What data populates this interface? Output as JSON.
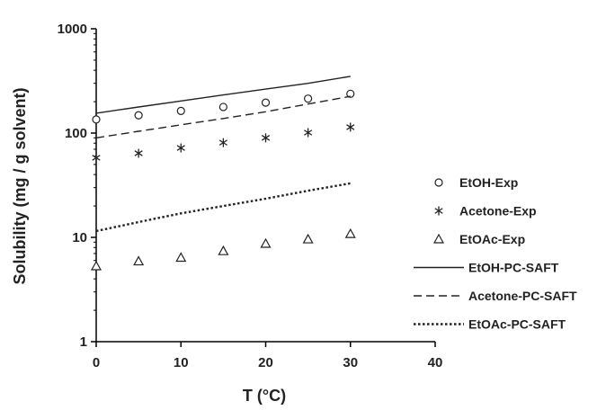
{
  "chart_data": {
    "type": "scatter",
    "xlabel": "T (°C)",
    "ylabel": "Solubility (mg / g solvent)",
    "xlim": [
      0,
      40
    ],
    "ylim": [
      1,
      1000
    ],
    "yscale": "log",
    "xticks": [
      "0",
      "10",
      "20",
      "30",
      "40"
    ],
    "yticks": [
      "1",
      "10",
      "100",
      "1000"
    ],
    "grid": false,
    "legend_position": "right",
    "series": [
      {
        "name": "EtOH-Exp",
        "kind": "marker",
        "marker": "circle",
        "x": [
          0,
          5,
          10,
          15,
          20,
          25,
          30
        ],
        "y": [
          135,
          148,
          163,
          178,
          196,
          214,
          238
        ]
      },
      {
        "name": "Acetone-Exp",
        "kind": "marker",
        "marker": "asterisk",
        "x": [
          0,
          5,
          10,
          15,
          20,
          25,
          30
        ],
        "y": [
          58,
          64,
          72,
          81,
          90,
          101,
          114
        ]
      },
      {
        "name": "EtOAc-Exp",
        "kind": "marker",
        "marker": "triangle",
        "x": [
          0,
          5,
          10,
          15,
          20,
          25,
          30
        ],
        "y": [
          5.3,
          5.9,
          6.4,
          7.4,
          8.7,
          9.6,
          10.8
        ]
      },
      {
        "name": "EtOH-PC-SAFT",
        "kind": "line",
        "dash": "solid",
        "x": [
          0,
          5,
          10,
          15,
          20,
          25,
          30
        ],
        "y": [
          155,
          178,
          203,
          232,
          264,
          300,
          350
        ]
      },
      {
        "name": "Acetone-PC-SAFT",
        "kind": "line",
        "dash": "dashed",
        "x": [
          0,
          5,
          10,
          15,
          20,
          25,
          30
        ],
        "y": [
          90,
          104,
          120,
          138,
          160,
          190,
          225
        ]
      },
      {
        "name": "EtOAc-PC-SAFT",
        "kind": "line",
        "dash": "dotted",
        "x": [
          0,
          5,
          10,
          15,
          20,
          25,
          30
        ],
        "y": [
          11.5,
          14,
          17,
          20,
          23.5,
          28,
          33
        ]
      }
    ]
  }
}
